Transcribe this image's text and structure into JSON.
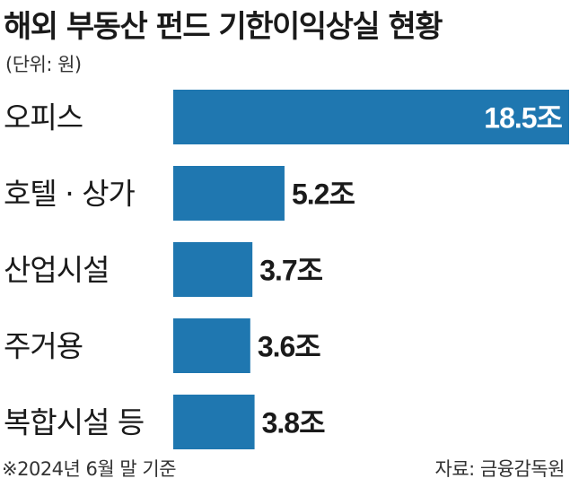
{
  "chart_data": {
    "type": "bar",
    "orientation": "horizontal",
    "title": "해외 부동산 펀드 기한이익상실 현황",
    "unit_note": "(단위: 원)",
    "categories": [
      "오피스",
      "호텔 · 상가",
      "산업시설",
      "주거용",
      "복합시설 등"
    ],
    "values": [
      18.5,
      5.2,
      3.7,
      3.6,
      3.8
    ],
    "value_labels": [
      "18.5조",
      "5.2조",
      "3.7조",
      "3.6조",
      "3.8조"
    ],
    "bar_color": "#1f77b0",
    "footnote": "※2024년 6월 말 기준",
    "source": "자료: 금융감독원"
  }
}
